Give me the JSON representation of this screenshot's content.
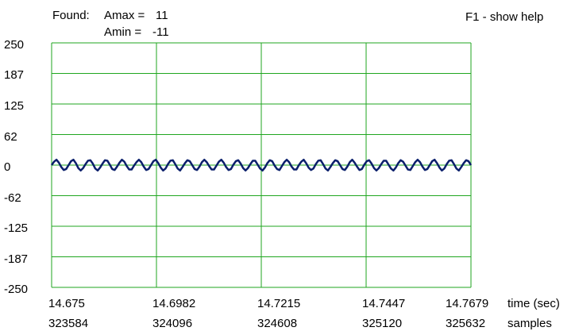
{
  "header": {
    "found_label": "Found:",
    "amax_label": "Amax =",
    "amax_value": "11",
    "amin_label": "Amin =",
    "amin_value": "-11",
    "help_text": "F1 - show help"
  },
  "colors": {
    "grid": "#1fa61f",
    "trace": "#0a1f6b",
    "background": "#ffffff"
  },
  "chart_data": {
    "type": "line",
    "ylim": [
      -250,
      250
    ],
    "y_ticks": [
      "250",
      "187",
      "125",
      "62",
      "0",
      "-62",
      "-125",
      "-187",
      "-250"
    ],
    "x_ticks_time": [
      "14.675",
      "14.6982",
      "14.7215",
      "14.7447",
      "14.7679"
    ],
    "x_ticks_samples": [
      "323584",
      "324096",
      "324608",
      "325120",
      "325632"
    ],
    "xlabel_time": "time (sec)",
    "xlabel_samples": "samples",
    "grid": true,
    "series": [
      {
        "x_start_sample": 323584,
        "x_end_sample": 325632,
        "amplitude": 11,
        "cycles": 40,
        "values": [
          0,
          7,
          11,
          5,
          -4,
          -10,
          -8,
          0,
          8,
          11,
          4,
          -6,
          -11,
          -6,
          2,
          9,
          10,
          3,
          -7,
          -11,
          -5,
          3,
          10,
          9,
          1,
          -8,
          -10,
          -3,
          5,
          11,
          7,
          -2,
          -9,
          -9,
          -1,
          6,
          11,
          6,
          -3,
          -10,
          -8,
          0,
          8,
          11,
          4,
          -5,
          -11,
          -7,
          2,
          9,
          10,
          2,
          -7,
          -11,
          -4,
          4,
          10,
          8,
          0,
          -8,
          -10,
          -3,
          6,
          11,
          6,
          -2,
          -9,
          -9,
          -1,
          7,
          11,
          5,
          -4,
          -10,
          -8,
          1,
          8,
          10,
          3,
          -6,
          -11,
          -6,
          2,
          9,
          9,
          1,
          -7,
          -11,
          -5,
          4,
          10,
          8,
          -1,
          -8,
          -10,
          -2,
          6,
          11,
          6,
          -3,
          -9,
          -9,
          0,
          7,
          11,
          4,
          -5,
          -10,
          -7,
          2,
          9,
          10,
          2,
          -7,
          -11,
          -4,
          4,
          10,
          8,
          0,
          -8,
          -10,
          -3,
          6,
          11,
          5,
          -3,
          -10,
          -8,
          1,
          8,
          10,
          3,
          -6,
          -11,
          -6,
          2,
          9,
          9,
          1,
          -7,
          -11,
          -5,
          4,
          10,
          7,
          -1,
          -9,
          -10,
          -2,
          6,
          11,
          6,
          -3,
          -10,
          -8,
          0,
          8,
          11,
          4,
          -5,
          -11,
          -7,
          2,
          9,
          10,
          2,
          -7,
          -11,
          -4,
          4,
          10,
          8,
          0
        ]
      }
    ]
  }
}
